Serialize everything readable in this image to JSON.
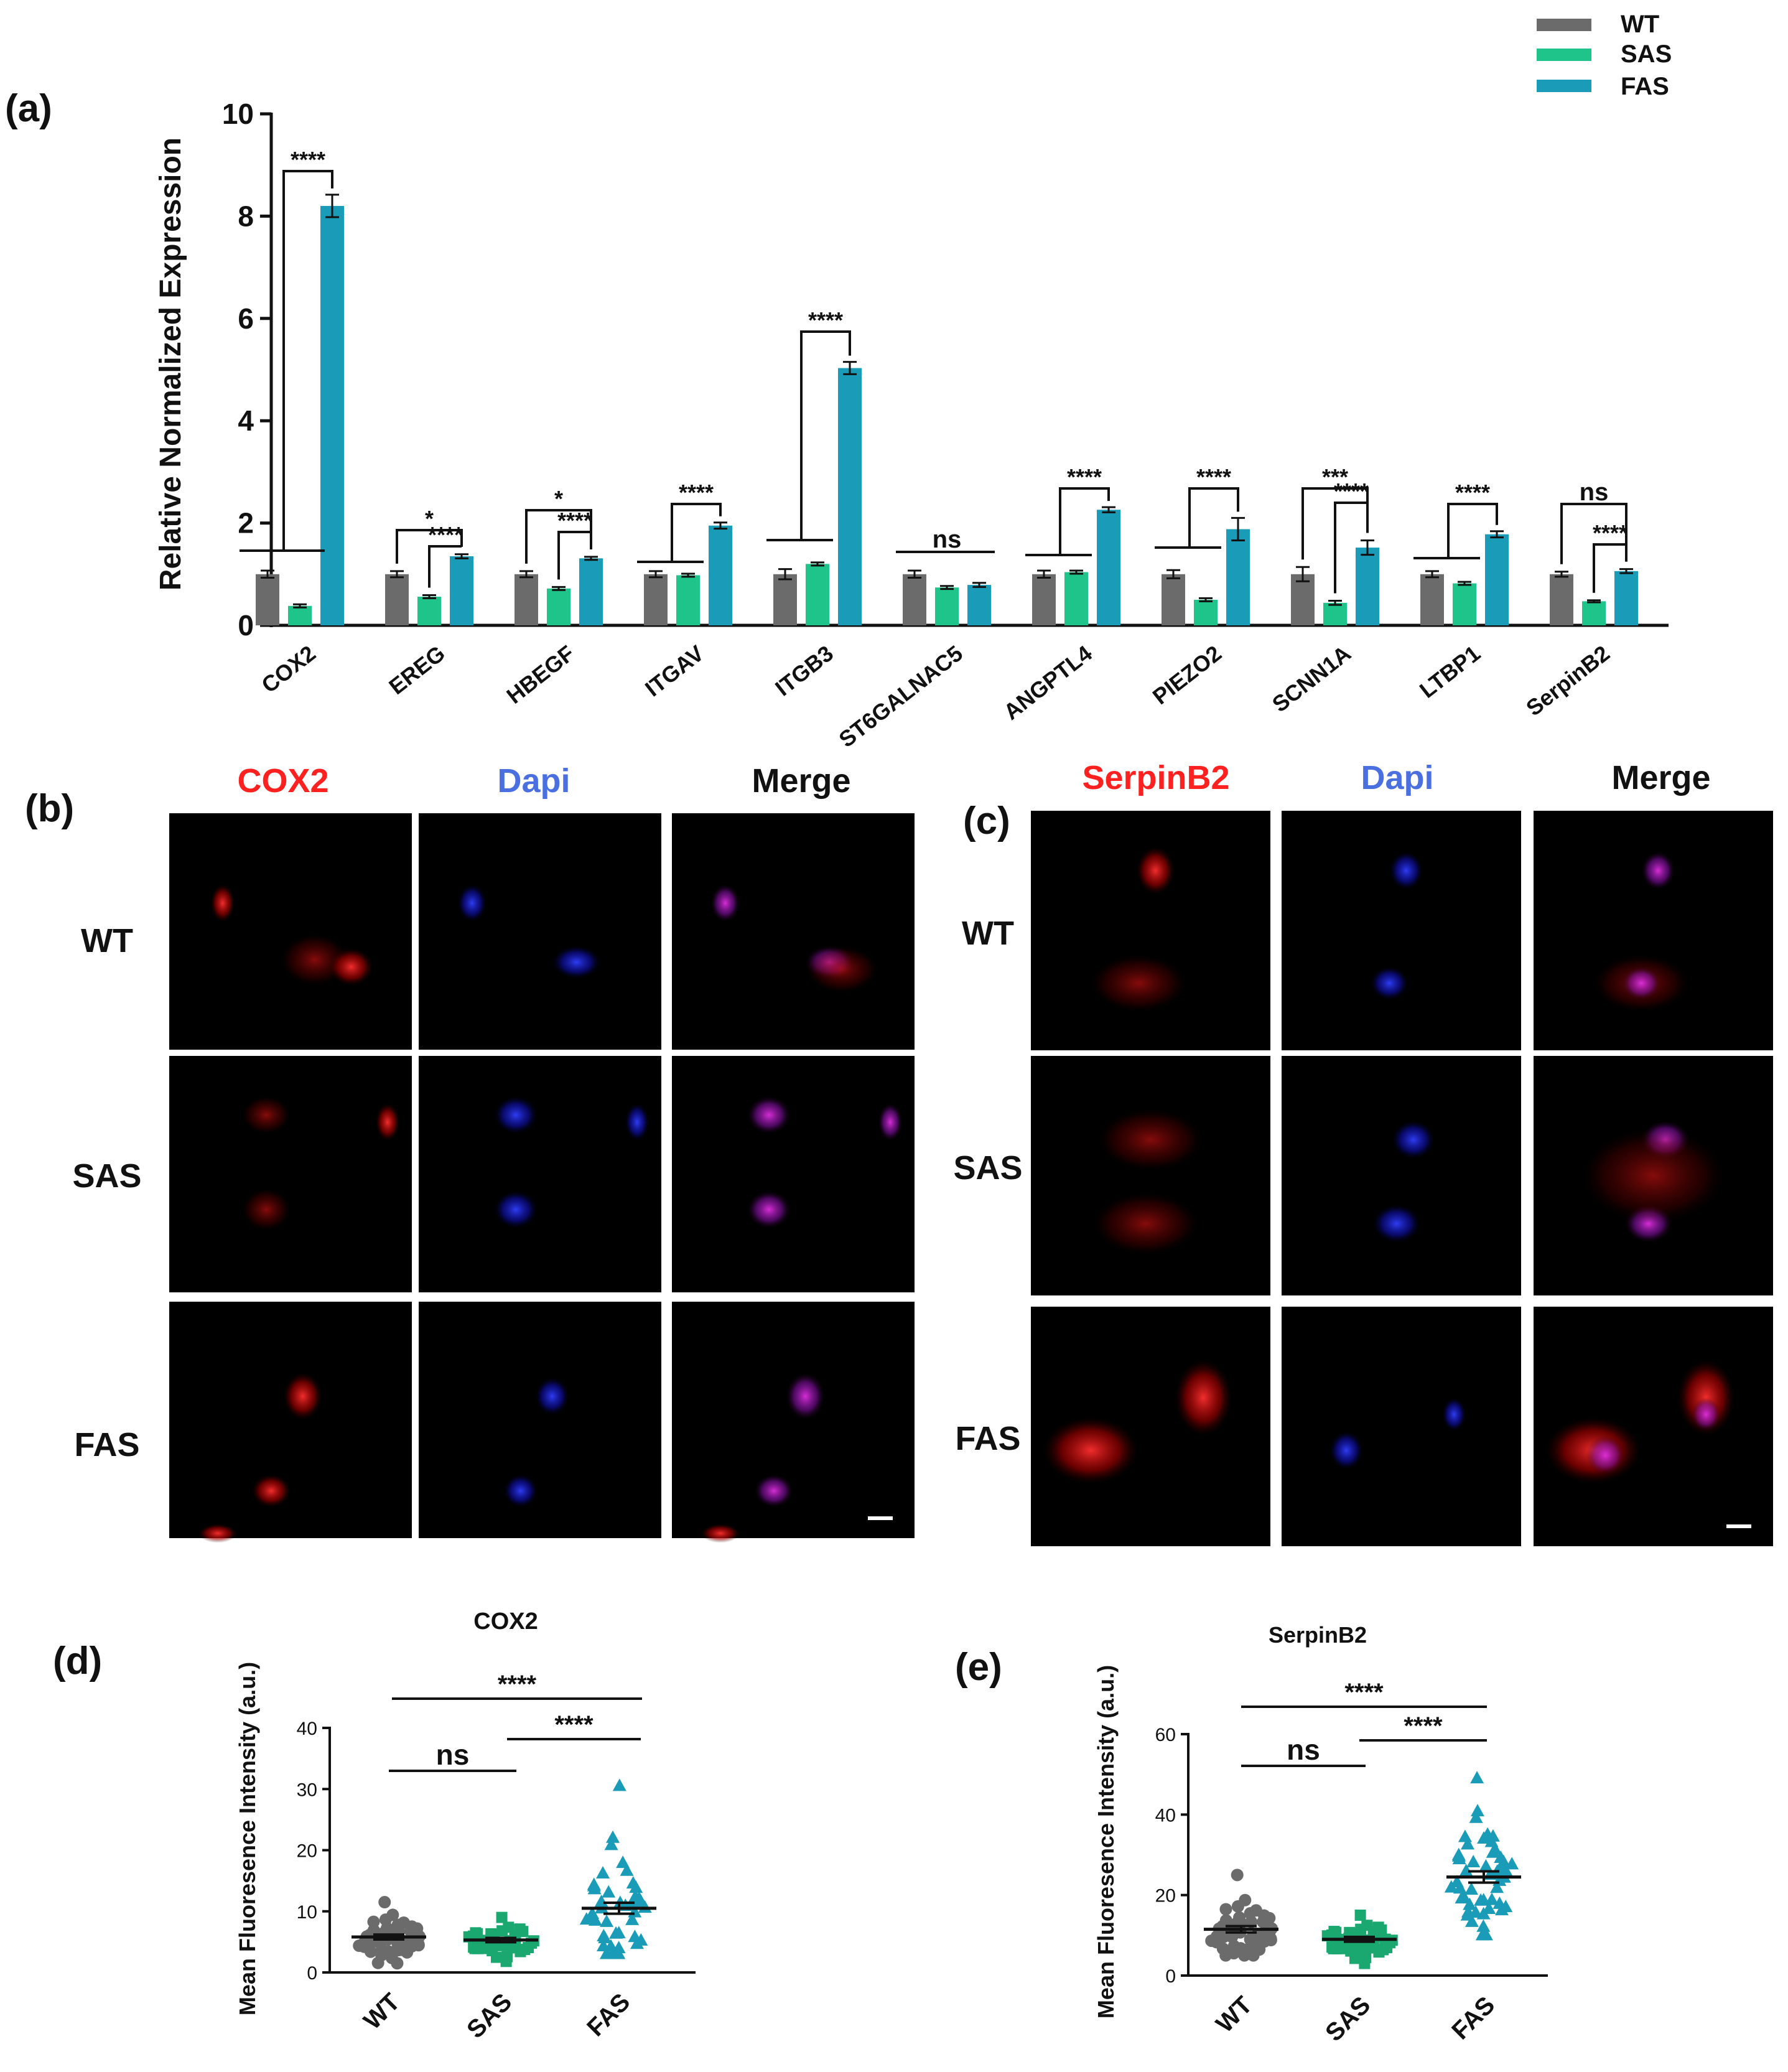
{
  "panels": {
    "a": "(a)",
    "b": "(b)",
    "c": "(c)",
    "d": "(d)",
    "e": "(e)"
  },
  "colors": {
    "WT": "#6b6b6b",
    "SAS": "#1fc48a",
    "FAS": "#1a9cb8",
    "red": "#ff2020",
    "blue": "#4a6fe0"
  },
  "chart_data": [
    {
      "type": "bar",
      "id": "a",
      "title": "",
      "ylabel": "Relative Normalized Expression",
      "xlabel": "",
      "ylim": [
        0,
        10
      ],
      "yticks": [
        0,
        2,
        4,
        6,
        8,
        10
      ],
      "legend": {
        "position": "top-right",
        "entries": [
          "WT",
          "SAS",
          "FAS"
        ]
      },
      "categories": [
        "COX2",
        "EREG",
        "HBEGF",
        "ITGAV",
        "ITGB3",
        "ST6GALNAC5",
        "ANGPTL4",
        "PIEZO2",
        "SCNN1A",
        "LTBP1",
        "SerpinB2"
      ],
      "series": [
        {
          "name": "WT",
          "values": [
            1.0,
            1.0,
            1.0,
            1.0,
            1.0,
            1.0,
            1.0,
            1.0,
            1.0,
            1.0,
            1.0
          ],
          "errors": [
            0.07,
            0.06,
            0.06,
            0.06,
            0.1,
            0.07,
            0.07,
            0.08,
            0.14,
            0.06,
            0.05
          ]
        },
        {
          "name": "SAS",
          "values": [
            0.38,
            0.56,
            0.72,
            0.98,
            1.2,
            0.74,
            1.04,
            0.5,
            0.44,
            0.82,
            0.47
          ],
          "errors": [
            0.03,
            0.03,
            0.03,
            0.03,
            0.03,
            0.03,
            0.03,
            0.03,
            0.04,
            0.03,
            0.02
          ]
        },
        {
          "name": "FAS",
          "values": [
            8.2,
            1.35,
            1.31,
            1.95,
            5.03,
            0.79,
            2.26,
            1.88,
            1.52,
            1.78,
            1.06
          ],
          "errors": [
            0.22,
            0.04,
            0.03,
            0.06,
            0.12,
            0.04,
            0.05,
            0.22,
            0.14,
            0.06,
            0.04
          ]
        }
      ],
      "annotations": [
        {
          "category": "COX2",
          "text": "****"
        },
        {
          "category": "EREG",
          "text": "*"
        },
        {
          "category": "EREG",
          "text": "****"
        },
        {
          "category": "HBEGF",
          "text": "*"
        },
        {
          "category": "HBEGF",
          "text": "****"
        },
        {
          "category": "ITGAV",
          "text": "****"
        },
        {
          "category": "ITGB3",
          "text": "****"
        },
        {
          "category": "ST6GALNAC5",
          "text": "ns"
        },
        {
          "category": "ANGPTL4",
          "text": "****"
        },
        {
          "category": "PIEZO2",
          "text": "****"
        },
        {
          "category": "SCNN1A",
          "text": "***"
        },
        {
          "category": "SCNN1A",
          "text": "****"
        },
        {
          "category": "LTBP1",
          "text": "****"
        },
        {
          "category": "SerpinB2",
          "text": "ns"
        },
        {
          "category": "SerpinB2",
          "text": "****"
        }
      ]
    },
    {
      "type": "scatter",
      "id": "d",
      "title": "COX2",
      "ylabel": "Mean Fluoresence Intensity (a.u.)",
      "ylim": [
        0,
        40
      ],
      "yticks": [
        0,
        10,
        20,
        30,
        40
      ],
      "categories": [
        "WT",
        "SAS",
        "FAS"
      ],
      "means": [
        5.8,
        5.3,
        10.5
      ],
      "sem": [
        0.4,
        0.35,
        0.9
      ],
      "ranges": [
        [
          1.5,
          11.5
        ],
        [
          1.8,
          9.0
        ],
        [
          3.0,
          30.5
        ]
      ],
      "n": [
        45,
        45,
        45
      ],
      "annotations": [
        {
          "pair": [
            "WT",
            "SAS"
          ],
          "text": "ns"
        },
        {
          "pair": [
            "SAS",
            "FAS"
          ],
          "text": "****"
        },
        {
          "pair": [
            "WT",
            "FAS"
          ],
          "text": "****"
        }
      ]
    },
    {
      "type": "scatter",
      "id": "e",
      "title": "SerpinB2",
      "ylabel": "Mean Fluoresence Intensity (a.u.)",
      "ylim": [
        0,
        60
      ],
      "yticks": [
        0,
        20,
        40,
        60
      ],
      "categories": [
        "WT",
        "SAS",
        "FAS"
      ],
      "means": [
        11.5,
        9.0,
        24.5
      ],
      "sem": [
        0.8,
        0.6,
        1.4
      ],
      "ranges": [
        [
          5.0,
          25.0
        ],
        [
          3.0,
          15.0
        ],
        [
          10.0,
          49.0
        ]
      ],
      "n": [
        45,
        55,
        50
      ],
      "annotations": [
        {
          "pair": [
            "WT",
            "SAS"
          ],
          "text": "ns"
        },
        {
          "pair": [
            "SAS",
            "FAS"
          ],
          "text": "****"
        },
        {
          "pair": [
            "WT",
            "FAS"
          ],
          "text": "****"
        }
      ]
    }
  ],
  "micrographs": {
    "b": {
      "columns": [
        "COX2",
        "Dapi",
        "Merge"
      ],
      "rows": [
        "WT",
        "SAS",
        "FAS"
      ]
    },
    "c": {
      "columns": [
        "SerpinB2",
        "Dapi",
        "Merge"
      ],
      "rows": [
        "WT",
        "SAS",
        "FAS"
      ]
    }
  }
}
